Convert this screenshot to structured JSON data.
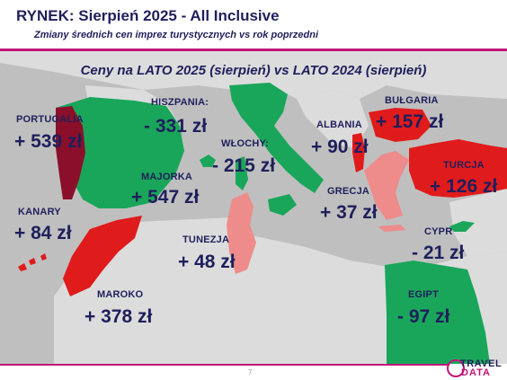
{
  "header": {
    "title": "RYNEK: Sierpień 2025 - All Inclusive",
    "subtitle": "Zmiany średnich cen imprez turystycznych vs rok poprzedni"
  },
  "map_heading": "Ceny na LATO 2025 (sierpień) vs  LATO 2024 (sierpień)",
  "colors": {
    "brand": "#c0157a",
    "text": "#1f1f5c",
    "price_down": "#1aa65a",
    "price_up_strong": "#e01b1b",
    "price_up_light": "#ee8b8b",
    "price_up_dark": "#8b0f2a",
    "map_sea": "#bfbfbf",
    "map_land": "#dcdcdc"
  },
  "countries": {
    "portugalia": {
      "name": "PORTUGALIA",
      "change": "+ 539 zł"
    },
    "hiszpania": {
      "name": "HISZPANIA:",
      "change": "- 331 zł"
    },
    "majorka": {
      "name": "MAJORKA",
      "change": "+ 547 zł"
    },
    "kanary": {
      "name": "KANARY",
      "change": "+ 84 zł"
    },
    "maroko": {
      "name": "MAROKO",
      "change": "+ 378 zł"
    },
    "wlochy": {
      "name": "WŁOCHY:",
      "change": "- 215 zł"
    },
    "tunezja": {
      "name": "TUNEZJA",
      "change": "+ 48 zł"
    },
    "albania": {
      "name": "ALBANIA",
      "change": "+ 90 zł"
    },
    "bulgaria": {
      "name": "BUŁGARIA",
      "change": "+ 157 zł"
    },
    "grecja": {
      "name": "GRECJA",
      "change": "+ 37 zł"
    },
    "turcja": {
      "name": "TURCJA",
      "change": "+ 126 zł"
    },
    "cypr": {
      "name": "CYPR",
      "change": "- 21 zł"
    },
    "egipt": {
      "name": "EGIPT",
      "change": "- 97 zł"
    }
  },
  "footer": {
    "page_number": "7",
    "logo_line1": "TRAVEL",
    "logo_line2": "DATA"
  }
}
